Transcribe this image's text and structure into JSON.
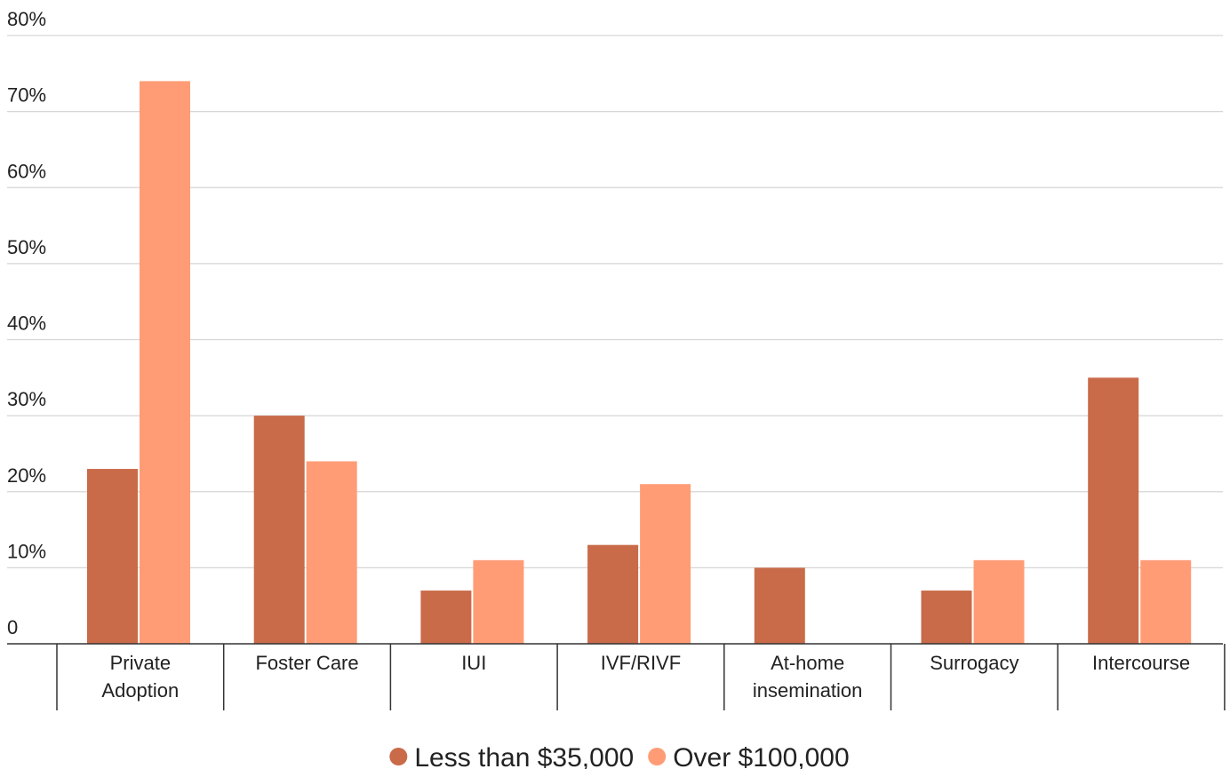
{
  "chart_data": {
    "type": "bar",
    "categories": [
      [
        "Private",
        "Adoption"
      ],
      [
        "Foster Care"
      ],
      [
        "IUI"
      ],
      [
        "IVF/RIVF"
      ],
      [
        "At-home",
        "insemination"
      ],
      [
        "Surrogacy"
      ],
      [
        "Intercourse"
      ]
    ],
    "series": [
      {
        "name": "Less than $35,000",
        "color": "#c96a48",
        "values": [
          23,
          30,
          7,
          13,
          10,
          7,
          35
        ]
      },
      {
        "name": "Over $100,000",
        "color": "#ff9c76",
        "values": [
          74,
          24,
          11,
          21,
          0,
          11,
          11
        ]
      }
    ],
    "ylim": [
      0,
      80
    ],
    "yticks": [
      0,
      10,
      20,
      30,
      40,
      50,
      60,
      70,
      80
    ],
    "ytick_labels": [
      "0",
      "10%",
      "20%",
      "30%",
      "40%",
      "50%",
      "60%",
      "70%",
      "80%"
    ],
    "grid": true,
    "legend": "bottom-center"
  }
}
